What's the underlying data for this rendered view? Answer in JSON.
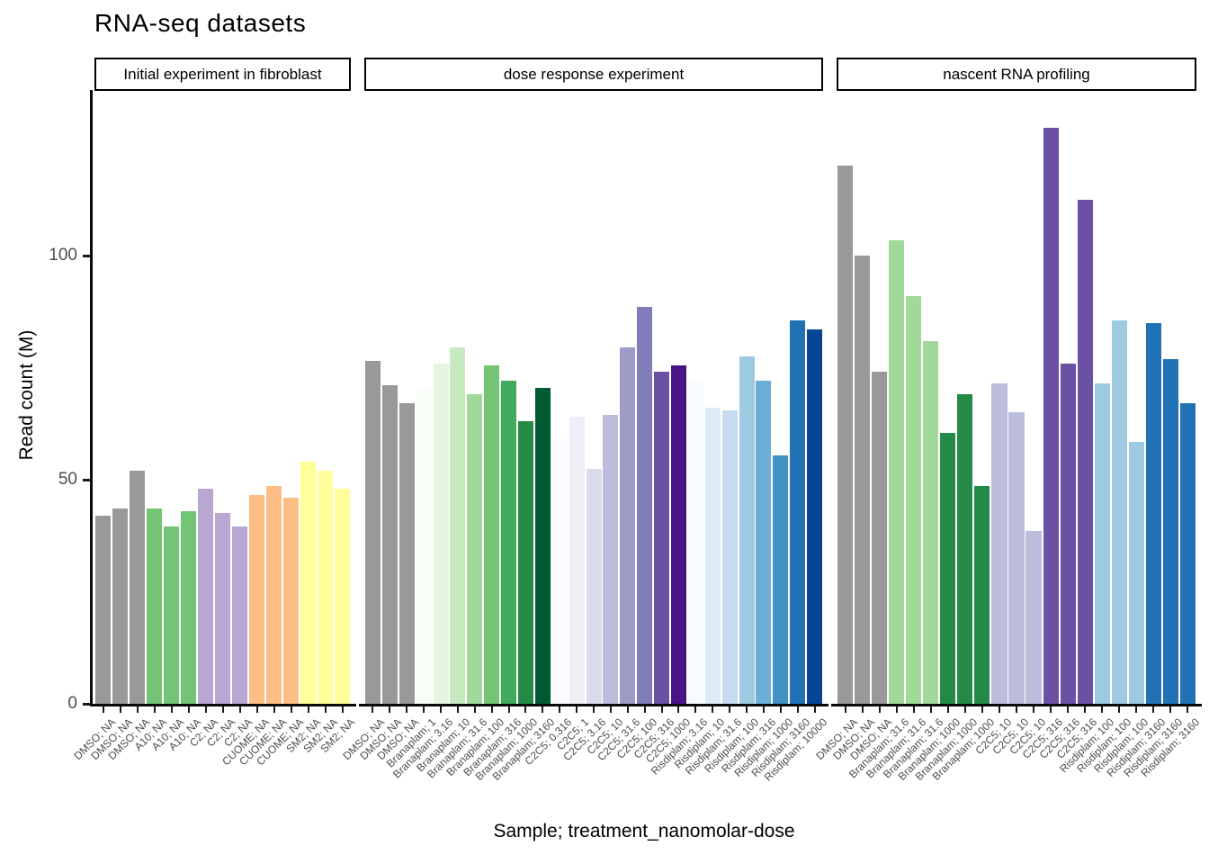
{
  "title": "RNA-seq datasets",
  "chart_data": {
    "type": "bar",
    "title": "RNA-seq datasets",
    "xlabel": "Sample; treatment_nanomolar-dose",
    "ylabel": "Read count (M)",
    "ylim": [
      0,
      137
    ],
    "y_ticks": [
      0,
      50,
      100
    ],
    "grid": false,
    "legend": "none",
    "axis_text_color": "#4D4D4D",
    "axis_line_color": "#0a0a0a",
    "facets": [
      {
        "label": "Initial experiment in fibroblast",
        "bars": [
          {
            "label": "DMSO; NA",
            "value": 42,
            "color": "#999999"
          },
          {
            "label": "DMSO; NA",
            "value": 43.5,
            "color": "#999999"
          },
          {
            "label": "DMSO; NA",
            "value": 52,
            "color": "#999999"
          },
          {
            "label": "A10; NA",
            "value": 43.5,
            "color": "#74C476"
          },
          {
            "label": "A10; NA",
            "value": 39.5,
            "color": "#74C476"
          },
          {
            "label": "A10; NA",
            "value": 43,
            "color": "#74C476"
          },
          {
            "label": "C2; NA",
            "value": 48,
            "color": "#B9A7D3"
          },
          {
            "label": "C2; NA",
            "value": 42.5,
            "color": "#B9A7D3"
          },
          {
            "label": "C2; NA",
            "value": 39.5,
            "color": "#B9A7D3"
          },
          {
            "label": "CUOME; NA",
            "value": 46.5,
            "color": "#FDBE85"
          },
          {
            "label": "CUOME; NA",
            "value": 48.5,
            "color": "#FDBE85"
          },
          {
            "label": "CUOME; NA",
            "value": 46,
            "color": "#FDBE85"
          },
          {
            "label": "SM2; NA",
            "value": 54,
            "color": "#FFFF99"
          },
          {
            "label": "SM2; NA",
            "value": 52,
            "color": "#FFFF99"
          },
          {
            "label": "SM2; NA",
            "value": 48,
            "color": "#FFFF99"
          }
        ]
      },
      {
        "label": "dose response experiment",
        "bars": [
          {
            "label": "DMSO; NA",
            "value": 76.5,
            "color": "#999999"
          },
          {
            "label": "DMSO; NA",
            "value": 71,
            "color": "#999999"
          },
          {
            "label": "DMSO; NA",
            "value": 67,
            "color": "#999999"
          },
          {
            "label": "Branaplam; 1",
            "value": 70,
            "color": "#F7FCF5"
          },
          {
            "label": "Branaplam; 3.16",
            "value": 76,
            "color": "#E5F5E0"
          },
          {
            "label": "Branaplam; 10",
            "value": 79.5,
            "color": "#C7E9C0"
          },
          {
            "label": "Branaplam; 31.6",
            "value": 69,
            "color": "#A1D99B"
          },
          {
            "label": "Branaplam; 100",
            "value": 75.5,
            "color": "#74C476"
          },
          {
            "label": "Branaplam; 316",
            "value": 72,
            "color": "#41AB5D"
          },
          {
            "label": "Branaplam; 1000",
            "value": 63,
            "color": "#238B45"
          },
          {
            "label": "Branaplam; 3160",
            "value": 70.5,
            "color": "#005A32"
          },
          {
            "label": "C2C5; 0.316",
            "value": 59,
            "color": "#FCFBFD"
          },
          {
            "label": "C2C5; 1",
            "value": 64,
            "color": "#EFEDF5"
          },
          {
            "label": "C2C5; 3.16",
            "value": 52.5,
            "color": "#DADAEB"
          },
          {
            "label": "C2C5; 10",
            "value": 64.5,
            "color": "#BCBDDC"
          },
          {
            "label": "C2C5; 31.6",
            "value": 79.5,
            "color": "#9E9AC8"
          },
          {
            "label": "C2C5; 100",
            "value": 88.5,
            "color": "#807DBA"
          },
          {
            "label": "C2C5; 316",
            "value": 74,
            "color": "#6A51A3"
          },
          {
            "label": "C2C5; 1000",
            "value": 75.5,
            "color": "#4A1486"
          },
          {
            "label": "Risdiplam; 3.16",
            "value": 72,
            "color": "#F7FBFF"
          },
          {
            "label": "Risdiplam; 10",
            "value": 66,
            "color": "#DEEBF7"
          },
          {
            "label": "Risdiplam; 31.6",
            "value": 65.5,
            "color": "#C6DBEF"
          },
          {
            "label": "Risdiplam; 100",
            "value": 77.5,
            "color": "#9ECAE1"
          },
          {
            "label": "Risdiplam; 316",
            "value": 72,
            "color": "#6BAED6"
          },
          {
            "label": "Risdiplam; 1000",
            "value": 55.5,
            "color": "#4292C6"
          },
          {
            "label": "Risdiplam; 3160",
            "value": 85.5,
            "color": "#2171B5"
          },
          {
            "label": "Risdiplam; 10000",
            "value": 83.5,
            "color": "#084594"
          }
        ]
      },
      {
        "label": "nascent RNA profiling",
        "bars": [
          {
            "label": "DMSO; NA",
            "value": 120,
            "color": "#999999"
          },
          {
            "label": "DMSO; NA",
            "value": 100,
            "color": "#999999"
          },
          {
            "label": "DMSO; NA",
            "value": 74,
            "color": "#999999"
          },
          {
            "label": "Branaplam; 31.6",
            "value": 103.5,
            "color": "#A1D99B"
          },
          {
            "label": "Branaplam; 31.6",
            "value": 91,
            "color": "#A1D99B"
          },
          {
            "label": "Branaplam; 31.6",
            "value": 81,
            "color": "#A1D99B"
          },
          {
            "label": "Branaplam; 1000",
            "value": 60.5,
            "color": "#238B45"
          },
          {
            "label": "Branaplam; 1000",
            "value": 69,
            "color": "#238B45"
          },
          {
            "label": "Branaplam; 1000",
            "value": 48.5,
            "color": "#238B45"
          },
          {
            "label": "C2C5; 10",
            "value": 71.5,
            "color": "#BCBDDC"
          },
          {
            "label": "C2C5; 10",
            "value": 65,
            "color": "#BCBDDC"
          },
          {
            "label": "C2C5; 10",
            "value": 38.5,
            "color": "#BCBDDC"
          },
          {
            "label": "C2C5; 316",
            "value": 128.5,
            "color": "#6A51A3"
          },
          {
            "label": "C2C5; 316",
            "value": 76,
            "color": "#6A51A3"
          },
          {
            "label": "C2C5; 316",
            "value": 112.5,
            "color": "#6A51A3"
          },
          {
            "label": "Risdiplam; 100",
            "value": 71.5,
            "color": "#9ECAE1"
          },
          {
            "label": "Risdiplam; 100",
            "value": 85.5,
            "color": "#9ECAE1"
          },
          {
            "label": "Risdiplam; 100",
            "value": 58.5,
            "color": "#9ECAE1"
          },
          {
            "label": "Risdiplam; 3160",
            "value": 85,
            "color": "#2171B5"
          },
          {
            "label": "Risdiplam; 3160",
            "value": 77,
            "color": "#2171B5"
          },
          {
            "label": "Risdiplam; 3160",
            "value": 67,
            "color": "#2171B5"
          }
        ]
      }
    ]
  }
}
